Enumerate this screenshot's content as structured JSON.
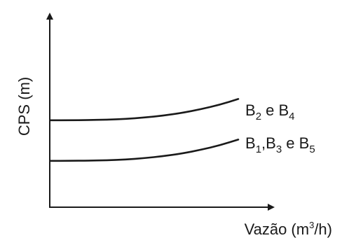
{
  "chart_data": {
    "type": "line",
    "xlabel": {
      "main": "Vazão (m",
      "sup": "3",
      "end": "/h)"
    },
    "ylabel": "CPS (m)",
    "grid": false,
    "legend": "inline labels at right end of curves",
    "series": [
      {
        "label": {
          "parts": [
            "B",
            "2",
            " e B",
            "4"
          ]
        },
        "x": [
          0,
          0.1,
          0.2,
          0.3,
          0.4,
          0.5,
          0.6,
          0.7,
          0.8,
          0.9,
          1.0
        ],
        "y": [
          0.45,
          0.45,
          0.451,
          0.453,
          0.457,
          0.464,
          0.474,
          0.488,
          0.507,
          0.53,
          0.56
        ]
      },
      {
        "label": {
          "parts": [
            "B",
            "1",
            ",B",
            "3",
            " e B",
            "5"
          ]
        },
        "x": [
          0,
          0.1,
          0.2,
          0.3,
          0.4,
          0.5,
          0.6,
          0.7,
          0.8,
          0.9,
          1.0
        ],
        "y": [
          0.24,
          0.24,
          0.241,
          0.243,
          0.247,
          0.254,
          0.264,
          0.278,
          0.297,
          0.32,
          0.35
        ]
      }
    ]
  }
}
